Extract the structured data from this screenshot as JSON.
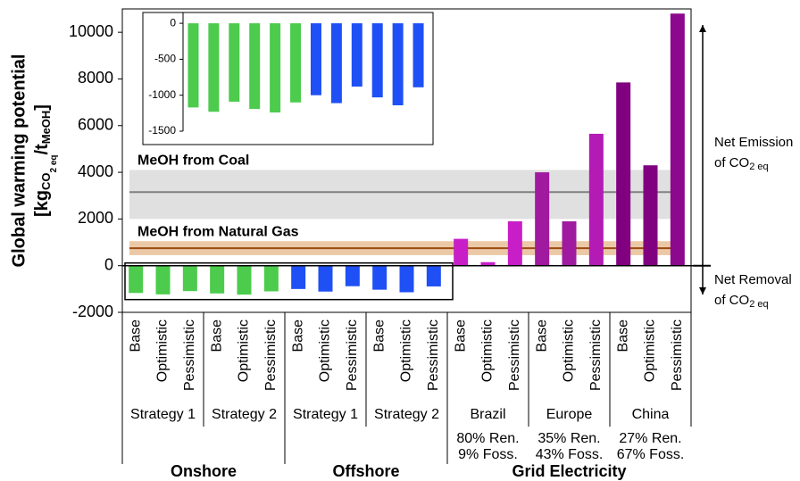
{
  "chart_data": {
    "type": "bar",
    "ylabel": {
      "line1": "Global warming potential",
      "line2": [
        "[kg",
        "CO",
        "2 eq",
        "/t",
        "MeOH",
        "]"
      ]
    },
    "ylim": [
      -2000,
      11000
    ],
    "yticks": [
      -2000,
      0,
      2000,
      4000,
      6000,
      8000,
      10000
    ],
    "categories": [
      "Base",
      "Optimistic",
      "Pessimistic",
      "Base",
      "Optimistic",
      "Pessimistic",
      "Base",
      "Optimistic",
      "Pessimistic",
      "Base",
      "Optimistic",
      "Pessimistic",
      "Base",
      "Optimistic",
      "Pessimistic",
      "Base",
      "Optimistic",
      "Pessimistic",
      "Base",
      "Optimistic",
      "Pessimistic"
    ],
    "values": [
      -1170,
      -1230,
      -1090,
      -1190,
      -1240,
      -1100,
      -1000,
      -1110,
      -880,
      -1030,
      -1140,
      -890,
      1150,
      150,
      1900,
      4000,
      1900,
      5650,
      7850,
      4300,
      10800
    ],
    "colors": [
      "#4ccb4c",
      "#4ccb4c",
      "#4ccb4c",
      "#4ccb4c",
      "#4ccb4c",
      "#4ccb4c",
      "#1f50f5",
      "#1f50f5",
      "#1f50f5",
      "#1f50f5",
      "#1f50f5",
      "#1f50f5",
      "#c81ec8",
      "#c81ec8",
      "#c81ec8",
      "#a01aa0",
      "#a01aa0",
      "#b41ab4",
      "#800080",
      "#800080",
      "#8c088c"
    ],
    "sources": [
      {
        "name": "Onshore",
        "color": "#4ccb4c",
        "groups": [
          {
            "name": "Strategy 1",
            "notes": []
          },
          {
            "name": "Strategy 2",
            "notes": []
          }
        ]
      },
      {
        "name": "Offshore",
        "color": "#1f50f5",
        "groups": [
          {
            "name": "Strategy 1",
            "notes": []
          },
          {
            "name": "Strategy 2",
            "notes": []
          }
        ]
      },
      {
        "name": "Grid Electricity",
        "color": "#c000c0",
        "groups": [
          {
            "name": "Brazil",
            "notes": [
              "80% Ren.",
              "9% Foss."
            ]
          },
          {
            "name": "Europe",
            "notes": [
              "35% Ren.",
              "43% Foss."
            ]
          },
          {
            "name": "China",
            "notes": [
              "27% Ren.",
              "67% Foss."
            ]
          }
        ]
      }
    ],
    "references": [
      {
        "label": "MeOH from Coal",
        "value": 3150,
        "range": [
          2000,
          4100
        ],
        "color": "#808080",
        "band_color": "#e0e0e0"
      },
      {
        "label": "MeOH from Natural Gas",
        "value": 750,
        "range": [
          450,
          1050
        ],
        "color": "#9a4a12",
        "band_color": "#ecc9a6"
      }
    ],
    "annotations": [
      {
        "direction": "up",
        "lines": [
          [
            "Net Emission"
          ],
          [
            "of CO",
            "2 eq"
          ]
        ]
      },
      {
        "direction": "down",
        "lines": [
          [
            "Net Removal"
          ],
          [
            "of CO",
            "2 eq"
          ]
        ]
      }
    ],
    "inset": {
      "ylim": [
        -1500,
        150
      ],
      "yticks": [
        0,
        -500,
        -1000,
        -1500
      ],
      "count": 12
    }
  }
}
